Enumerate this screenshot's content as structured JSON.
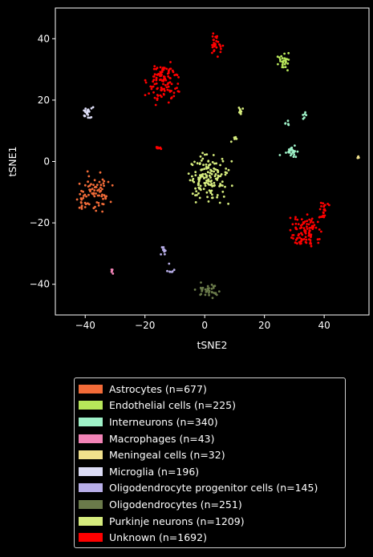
{
  "chart_data": {
    "type": "scatter",
    "xlabel": "tSNE2",
    "ylabel": "tSNE1",
    "xlim": [
      -50,
      55
    ],
    "ylim": [
      -50,
      50
    ],
    "xticks": [
      -40,
      -20,
      0,
      20,
      40
    ],
    "yticks": [
      -40,
      -20,
      0,
      20,
      40
    ],
    "tick_labels_x": [
      "−40",
      "−20",
      "0",
      "20",
      "40"
    ],
    "tick_labels_y": [
      "−40",
      "−20",
      "0",
      "20",
      "40"
    ],
    "grid": false,
    "legend_position": "below",
    "series": [
      {
        "name": "Astrocytes (n=677)",
        "color": "#f26b38",
        "clusters": [
          {
            "cx": -36,
            "cy": -10,
            "sx": 3.8,
            "sy": 5.0,
            "n": 60
          },
          {
            "cx": -41,
            "cy": -13,
            "sx": 1.5,
            "sy": 3.0,
            "n": 20
          }
        ]
      },
      {
        "name": "Endothelial cells (n=225)",
        "color": "#b7e65a",
        "clusters": [
          {
            "cx": 26.5,
            "cy": 33,
            "sx": 1.6,
            "sy": 2.2,
            "n": 28
          }
        ]
      },
      {
        "name": "Interneurons (n=340)",
        "color": "#9ff2c8",
        "clusters": [
          {
            "cx": 29,
            "cy": 3,
            "sx": 2.5,
            "sy": 1.5,
            "n": 22
          },
          {
            "cx": 33.5,
            "cy": 15,
            "sx": 0.8,
            "sy": 0.8,
            "n": 6
          },
          {
            "cx": 27.5,
            "cy": 12.5,
            "sx": 0.8,
            "sy": 0.8,
            "n": 6
          }
        ]
      },
      {
        "name": "Macrophages (n=43)",
        "color": "#f283b6",
        "clusters": [
          {
            "cx": -31,
            "cy": -35.5,
            "sx": 0.3,
            "sy": 0.8,
            "n": 5
          }
        ]
      },
      {
        "name": "Meningeal cells (n=32)",
        "color": "#f0e08c",
        "clusters": [
          {
            "cx": 51.5,
            "cy": 1.3,
            "sx": 0.5,
            "sy": 0.3,
            "n": 5
          }
        ]
      },
      {
        "name": "Microglia (n=196)",
        "color": "#dcdcf5",
        "clusters": [
          {
            "cx": -38.5,
            "cy": 15.5,
            "sx": 1.8,
            "sy": 1.5,
            "n": 22
          }
        ]
      },
      {
        "name": "Oligodendrocyte progenitor cells (n=145)",
        "color": "#b8aee8",
        "clusters": [
          {
            "cx": -14,
            "cy": -29,
            "sx": 0.7,
            "sy": 1.3,
            "n": 10
          },
          {
            "cx": -11,
            "cy": -35.5,
            "sx": 1.3,
            "sy": 2.0,
            "n": 7
          }
        ]
      },
      {
        "name": "Oligodendrocytes (n=251)",
        "color": "#6a7a4a",
        "clusters": [
          {
            "cx": 1.5,
            "cy": -42,
            "sx": 3.2,
            "sy": 1.7,
            "n": 35
          }
        ]
      },
      {
        "name": "Purkinje neurons (n=1209)",
        "color": "#d6ec7e",
        "clusters": [
          {
            "cx": 1,
            "cy": -6,
            "sx": 5.5,
            "sy": 6.5,
            "n": 150
          },
          {
            "cx": 12,
            "cy": 17,
            "sx": 0.8,
            "sy": 1.5,
            "n": 10
          },
          {
            "cx": 10,
            "cy": 7,
            "sx": 0.8,
            "sy": 0.8,
            "n": 5
          }
        ]
      },
      {
        "name": "Unknown (n=1692)",
        "color": "#ff0000",
        "clusters": [
          {
            "cx": -14,
            "cy": 26,
            "sx": 4.0,
            "sy": 5.5,
            "n": 110
          },
          {
            "cx": 4,
            "cy": 38,
            "sx": 1.6,
            "sy": 3.5,
            "n": 30
          },
          {
            "cx": 34,
            "cy": -23,
            "sx": 4.5,
            "sy": 5.0,
            "n": 95
          },
          {
            "cx": 40,
            "cy": -16,
            "sx": 1.8,
            "sy": 2.5,
            "n": 20
          },
          {
            "cx": -15.5,
            "cy": 4.5,
            "sx": 0.8,
            "sy": 0.5,
            "n": 10
          }
        ]
      }
    ]
  }
}
